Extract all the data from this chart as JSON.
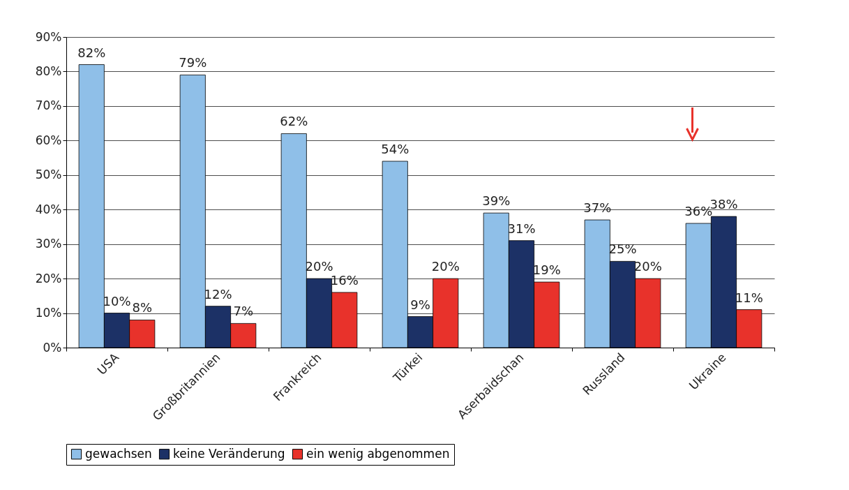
{
  "chart_data": {
    "type": "bar",
    "categories": [
      "USA",
      "Großbritannien",
      "Frankreich",
      "Türkei",
      "Aserbaidschan",
      "Russland",
      "Ukraine"
    ],
    "series": [
      {
        "name": "gewachsen",
        "color": "#8fbfe8",
        "values": [
          82,
          79,
          62,
          54,
          39,
          37,
          36
        ],
        "value_labels": [
          "82%",
          "79%",
          "62%",
          "54%",
          "39%",
          "37%",
          "36%"
        ]
      },
      {
        "name": "keine Veränderung",
        "color": "#1c3166",
        "values": [
          10,
          12,
          20,
          9,
          31,
          25,
          38
        ],
        "value_labels": [
          "10%",
          "12%",
          "20%",
          "9%",
          "31%",
          "25%",
          "38%"
        ]
      },
      {
        "name": "ein wenig abgenommen",
        "color": "#e8322b",
        "values": [
          8,
          7,
          16,
          20,
          19,
          20,
          11
        ],
        "value_labels": [
          "8%",
          "7%",
          "16%",
          "20%",
          "19%",
          "20%",
          "11%"
        ]
      }
    ],
    "ylim": [
      0,
      90
    ],
    "yticks": [
      {
        "value": 0,
        "label": "0%"
      },
      {
        "value": 10,
        "label": "10%"
      },
      {
        "value": 20,
        "label": "20%"
      },
      {
        "value": 30,
        "label": "30%"
      },
      {
        "value": 40,
        "label": "40%"
      },
      {
        "value": 50,
        "label": "50%"
      },
      {
        "value": 60,
        "label": "60%"
      },
      {
        "value": 70,
        "label": "70%"
      },
      {
        "value": 80,
        "label": "80%"
      },
      {
        "value": 90,
        "label": "90%"
      }
    ],
    "grid": "y",
    "legend": "bottom"
  }
}
